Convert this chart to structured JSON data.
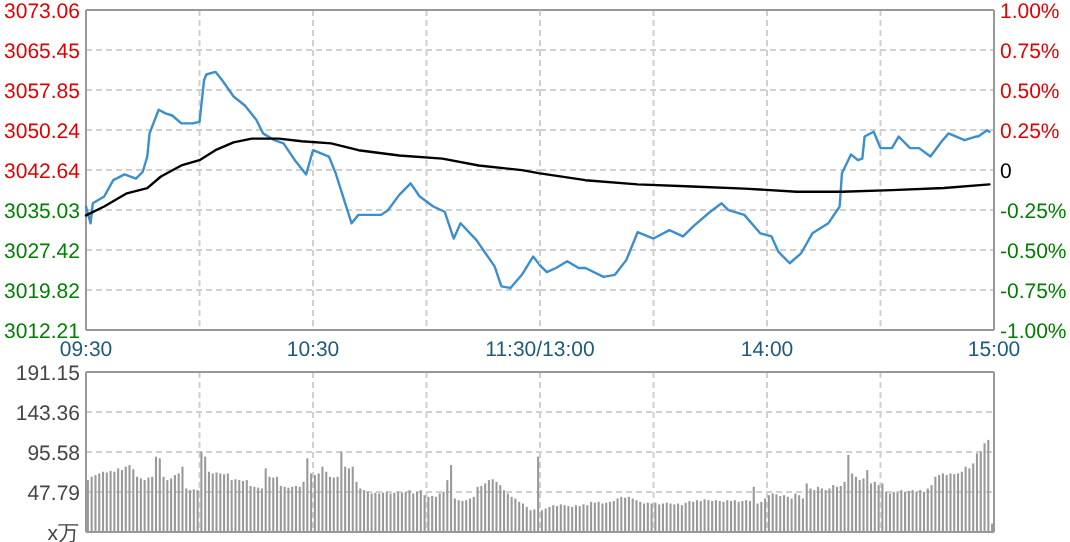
{
  "chart_data": [
    {
      "type": "line",
      "xlim": [
        9.5,
        11.5
      ],
      "xticks": [
        {
          "value": 9.5,
          "label": "09:30"
        },
        {
          "value": 10,
          "label": null
        },
        {
          "value": 10.5,
          "label": "10:30"
        },
        {
          "value": 11,
          "label": null
        },
        {
          "value": 11.5,
          "label": "11:30/13:00"
        }
      ],
      "ylim": [
        3012.21,
        3073.06
      ],
      "yticks": [
        3012.21,
        3019.82,
        3027.42,
        3035.03,
        3042.64,
        3050.24,
        3057.85,
        3065.45,
        3073.06
      ],
      "grid": true,
      "series": [
        {
          "color": "#3b8ed0",
          "x": [
            9.5,
            9.52,
            9.53,
            9.58,
            9.62,
            9.67,
            9.72,
            9.75,
            9.77,
            9.78,
            9.82,
            9.85,
            9.88,
            9.92,
            9.97,
            10.0,
            10.02,
            10.03,
            10.07,
            10.1,
            10.15,
            10.2,
            10.25,
            10.28,
            10.33,
            10.37,
            10.42,
            10.47,
            10.5,
            10.57,
            10.6,
            10.67,
            10.7,
            10.8,
            10.83,
            10.88,
            10.93,
            10.97,
            11.03,
            11.08,
            11.12,
            11.15,
            11.22,
            11.3,
            11.33,
            11.37,
            11.42,
            11.47,
            11.5
          ],
          "values": [
            3035.7,
            3032.5,
            3036.3,
            3037.6,
            3040.7,
            3041.8,
            3041.0,
            3042.3,
            3045.2,
            3049.6,
            3054.1,
            3053.4,
            3053.0,
            3051.5,
            3051.5,
            3051.8,
            3059.7,
            3060.8,
            3061.3,
            3059.7,
            3056.6,
            3054.9,
            3052.2,
            3049.6,
            3048.3,
            3047.7,
            3044.5,
            3041.8,
            3046.4,
            3045.2,
            3042.0,
            3032.5,
            3034.1,
            3034.1,
            3035.0,
            3037.9,
            3040.1,
            3037.6,
            3035.7,
            3034.7,
            3029.6,
            3032.5,
            3029.3,
            3024.3,
            3020.5,
            3020.2,
            3022.7,
            3026.2,
            3024.5
          ]
        },
        {
          "color": "#000000",
          "x": [
            9.5,
            9.58,
            9.68,
            9.77,
            9.83,
            9.92,
            10.0,
            10.07,
            10.15,
            10.23,
            10.35,
            10.45,
            10.58,
            10.7,
            10.88,
            11.07,
            11.23,
            11.42,
            11.5
          ],
          "values": [
            3034.0,
            3035.7,
            3038.2,
            3039.2,
            3041.4,
            3043.5,
            3044.5,
            3046.4,
            3047.9,
            3048.6,
            3048.6,
            3048.1,
            3047.7,
            3046.4,
            3045.4,
            3044.8,
            3043.5,
            3042.6,
            3042.0
          ]
        }
      ]
    },
    {
      "type": "line",
      "xlim": [
        13,
        15
      ],
      "xticks": [
        {
          "value": 13,
          "label": null
        },
        {
          "value": 13.5,
          "label": null
        },
        {
          "value": 14,
          "label": "14:00"
        },
        {
          "value": 14.5,
          "label": null
        },
        {
          "value": 15,
          "label": "15:00"
        }
      ],
      "ylim": [
        3012.21,
        3073.06
      ],
      "y2lim": [
        -1,
        1
      ],
      "y2ticks": [
        {
          "value": -1,
          "label": "-1.00%"
        },
        {
          "value": -0.75,
          "label": "-0.75%"
        },
        {
          "value": -0.5,
          "label": "-0.50%"
        },
        {
          "value": -0.25,
          "label": "-0.25%"
        },
        0,
        {
          "value": 0.25,
          "label": "0.25%"
        },
        {
          "value": 0.5,
          "label": "0.50%"
        },
        {
          "value": 0.75,
          "label": "0.75%"
        },
        {
          "value": 1,
          "label": "1.00%"
        }
      ],
      "tick_labels": "xy2",
      "grid": true,
      "series": [
        {
          "color": "#3b8ed0",
          "x": [
            13.0,
            13.03,
            13.07,
            13.12,
            13.17,
            13.2,
            13.28,
            13.33,
            13.38,
            13.43,
            13.5,
            13.57,
            13.63,
            13.68,
            13.75,
            13.8,
            13.83,
            13.9,
            13.97,
            14.02,
            14.05,
            14.1,
            14.15,
            14.2,
            14.27,
            14.32,
            14.33,
            14.37,
            14.4,
            14.42,
            14.43,
            14.47,
            14.5,
            14.55,
            14.58,
            14.63,
            14.67,
            14.72,
            14.77,
            14.8,
            14.87,
            14.92,
            14.93,
            14.97,
            14.98
          ],
          "values": [
            3024.5,
            3023.2,
            3024.0,
            3025.3,
            3024.0,
            3024.0,
            3022.3,
            3022.7,
            3025.5,
            3030.8,
            3029.6,
            3031.2,
            3030.0,
            3032.1,
            3034.7,
            3036.3,
            3035.0,
            3034.1,
            3030.6,
            3030.0,
            3027.1,
            3024.9,
            3026.8,
            3030.6,
            3032.5,
            3035.7,
            3042.0,
            3045.6,
            3044.5,
            3044.8,
            3049.0,
            3049.9,
            3046.8,
            3046.8,
            3049.0,
            3046.8,
            3046.8,
            3045.2,
            3048.1,
            3049.6,
            3048.3,
            3049.0,
            3049.0,
            3050.2,
            3049.9
          ]
        },
        {
          "color": "#000000",
          "x": [
            13.0,
            13.2,
            13.43,
            13.67,
            13.9,
            14.13,
            14.33,
            14.55,
            14.78,
            14.98
          ],
          "values": [
            3042.0,
            3040.7,
            3039.9,
            3039.5,
            3039.1,
            3038.5,
            3038.5,
            3038.8,
            3039.2,
            3039.9
          ]
        }
      ]
    },
    {
      "type": "bar",
      "color": "#999999",
      "tick_labels": "y",
      "ylim": [
        0,
        191.15
      ],
      "yticks": [
        {
          "value": 0,
          "label": "x万"
        },
        47.79,
        95.58,
        143.36,
        191.15
      ],
      "grid": true,
      "categories": [
        null,
        null,
        null,
        null,
        null,
        null,
        null,
        null,
        null,
        null,
        null,
        null,
        null,
        null,
        null,
        null,
        null,
        null,
        null,
        null,
        null,
        null,
        null,
        null,
        null,
        null,
        null,
        null,
        null,
        null,
        null,
        null,
        null,
        null,
        null,
        null,
        null,
        null,
        null,
        null,
        null,
        null,
        null,
        null,
        null,
        null,
        null,
        null,
        null,
        null,
        null,
        null,
        null,
        null,
        null,
        null,
        null,
        null,
        null,
        null,
        null,
        null,
        null,
        null,
        null,
        null,
        null,
        null,
        null,
        null,
        null,
        null,
        null,
        null,
        null,
        null,
        null,
        null,
        null,
        null,
        null,
        null,
        null,
        null,
        null,
        null,
        null,
        null,
        null,
        null,
        null,
        null,
        null,
        null,
        null,
        null,
        null,
        null,
        null,
        null,
        null,
        null,
        null,
        null,
        null,
        null,
        null,
        null,
        null,
        null,
        null,
        null,
        null,
        null,
        null,
        null,
        null,
        null,
        null,
        null,
        null,
        null,
        null,
        null,
        null,
        null,
        null,
        null,
        null,
        null,
        null,
        null,
        null,
        null,
        null,
        null,
        null,
        null,
        null,
        null,
        null,
        null,
        null,
        null,
        null,
        null,
        null,
        null,
        null,
        null,
        null,
        null,
        null,
        null,
        null,
        null,
        null,
        null,
        null,
        null,
        null,
        null,
        null,
        null,
        null,
        null,
        null,
        null,
        null,
        null,
        null,
        null,
        null,
        null,
        null,
        null,
        null,
        null,
        null,
        null,
        null,
        null,
        null,
        null,
        null,
        null,
        null,
        null,
        null,
        null,
        null,
        null,
        null,
        null,
        null,
        null,
        null,
        null,
        null,
        null,
        null,
        null,
        null,
        null,
        null,
        null,
        null,
        null,
        null,
        null,
        null,
        null,
        null,
        null,
        null,
        null,
        null,
        null,
        null,
        null,
        null,
        null,
        null,
        null,
        null,
        null,
        null,
        null,
        null,
        null,
        null,
        null,
        null,
        null,
        null,
        null,
        null,
        null,
        null,
        null
      ],
      "values": [
        62,
        66,
        68,
        70,
        72,
        71,
        73,
        72,
        76,
        74,
        78,
        80,
        75,
        66,
        64,
        62,
        65,
        66,
        90,
        88,
        66,
        62,
        64,
        68,
        70,
        78,
        52,
        50,
        51,
        50,
        96,
        90,
        72,
        70,
        71,
        70,
        69,
        70,
        62,
        63,
        62,
        61,
        62,
        55,
        54,
        53,
        52,
        76,
        66,
        65,
        66,
        55,
        54,
        53,
        54,
        55,
        54,
        60,
        88,
        70,
        68,
        70,
        78,
        72,
        66,
        65,
        66,
        96,
        78,
        76,
        78,
        60,
        52,
        50,
        48,
        46,
        47,
        46,
        47,
        48,
        46,
        47,
        48,
        47,
        48,
        50,
        46,
        48,
        50,
        44,
        42,
        43,
        42,
        46,
        48,
        62,
        80,
        40,
        38,
        37,
        38,
        40,
        42,
        54,
        55,
        58,
        62,
        63,
        60,
        56,
        50,
        46,
        42,
        40,
        36,
        34,
        30,
        26,
        27,
        90,
        26,
        28,
        30,
        32,
        31,
        33,
        32,
        31,
        30,
        32,
        31,
        33,
        32,
        36,
        35,
        36,
        34,
        35,
        36,
        37,
        40,
        42,
        41,
        42,
        40,
        38,
        36,
        34,
        35,
        34,
        35,
        33,
        34,
        35,
        34,
        33,
        34,
        32,
        35,
        37,
        36,
        38,
        37,
        39,
        38,
        37,
        38,
        37,
        36,
        38,
        37,
        38,
        36,
        37,
        38,
        37,
        54,
        34,
        36,
        40,
        44,
        46,
        45,
        43,
        44,
        42,
        40,
        46,
        44,
        40,
        58,
        52,
        50,
        54,
        52,
        50,
        52,
        56,
        54,
        55,
        60,
        92,
        70,
        66,
        62,
        64,
        74,
        58,
        60,
        56,
        58,
        48,
        46,
        48,
        47,
        50,
        48,
        49,
        50,
        48,
        50,
        48,
        52,
        56,
        66,
        68,
        70,
        68,
        70,
        69,
        70,
        72,
        78,
        76,
        82,
        94,
        96,
        106,
        110,
        10
      ]
    }
  ]
}
